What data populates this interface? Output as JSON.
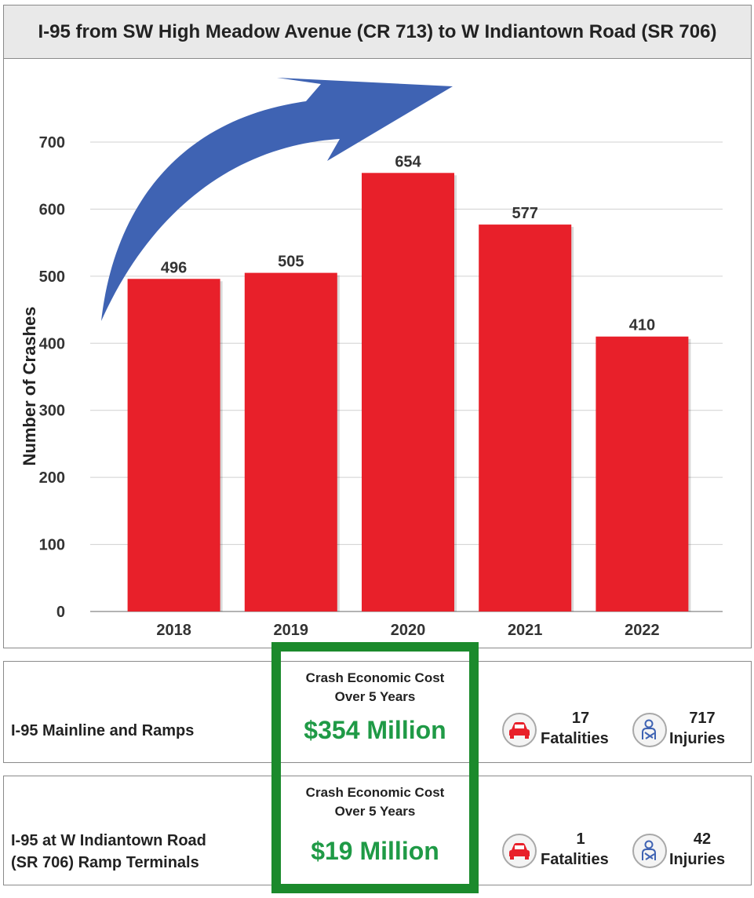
{
  "title": "I-95 from SW High Meadow Avenue (CR 713) to W Indiantown Road (SR 706)",
  "chart_data": {
    "type": "bar",
    "title": "I-95 from SW High Meadow Avenue (CR 713) to W Indiantown Road (SR 706)",
    "categories": [
      "2018",
      "2019",
      "2020",
      "2021",
      "2022"
    ],
    "values": [
      496,
      505,
      654,
      577,
      410
    ],
    "ylabel": "Number of Crashes",
    "xlabel": "",
    "ylim": [
      0,
      700
    ],
    "yticks": [
      0,
      100,
      200,
      300,
      400,
      500,
      600,
      700
    ],
    "grid": true,
    "bar_color": "#e8202a",
    "trend_arrow_color": "#3f63b3"
  },
  "rows": [
    {
      "label_lines": [
        "I-95 Mainline and Ramps"
      ],
      "cost_heading": [
        "Crash Economic Cost",
        "Over 5 Years"
      ],
      "cost_value": "$354 Million",
      "fatalities": "17",
      "fatalities_label": "Fatalities",
      "injuries": "717",
      "injuries_label": "Injuries"
    },
    {
      "label_lines": [
        "I-95 at W Indiantown Road",
        "(SR 706) Ramp Terminals"
      ],
      "cost_heading": [
        "Crash Economic Cost",
        "Over 5 Years"
      ],
      "cost_value": "$19 Million",
      "fatalities": "1",
      "fatalities_label": "Fatalities",
      "injuries": "42",
      "injuries_label": "Injuries"
    }
  ],
  "colors": {
    "cost_value": "#1f9a46",
    "cost_box_border": "#1b8a2c",
    "car_icon": "#e8202a",
    "person_icon": "#3f63b3"
  },
  "icons": {
    "fatalities": "car-icon",
    "injuries": "injured-person-icon"
  }
}
